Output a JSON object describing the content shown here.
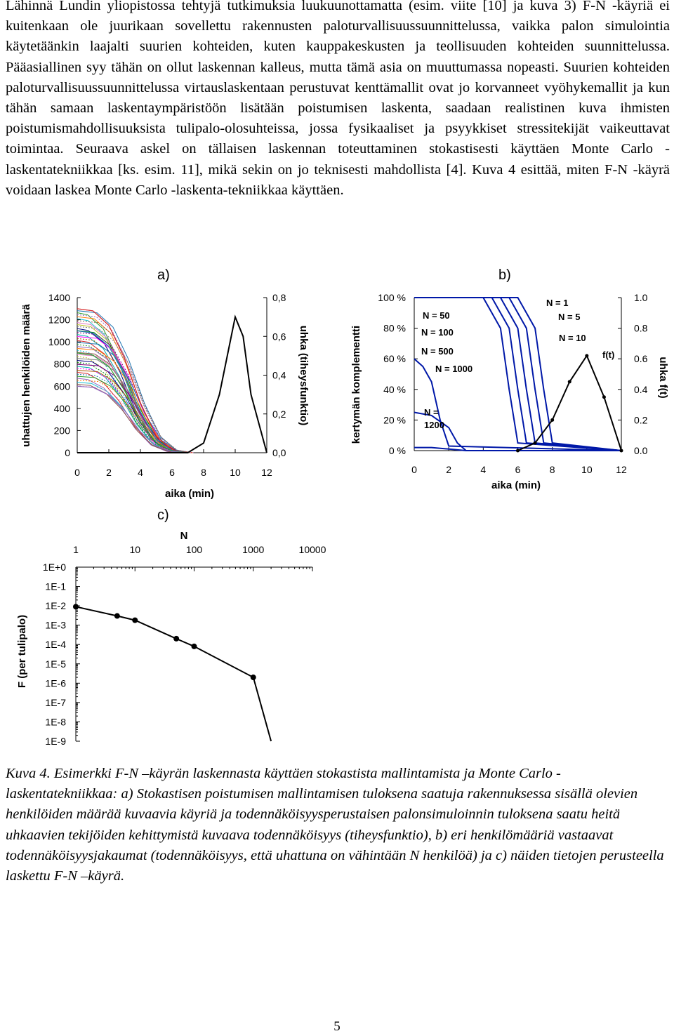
{
  "body_text": "Lähinnä Lundin yliopistossa tehtyjä tutkimuksia luukuunottamatta (esim. viite [10] ja kuva 3) F-N -käyriä ei kuitenkaan ole juurikaan sovellettu rakennusten paloturvallisuussuunnittelussa, vaikka palon simulointia käytetäänkin laajalti suurien kohteiden, kuten kauppakeskusten ja teollisuuden kohteiden suunnittelussa. Pääasiallinen syy tähän on ollut laskennan kalleus, mutta tämä asia on muuttumassa nopeasti. Suurien kohteiden paloturvallisuussuunnittelussa virtauslaskentaan perustuvat kenttämallit ovat jo korvanneet vyöhykemallit ja kun tähän samaan laskentaympäristöön lisätään poistumisen laskenta, saadaan realistinen kuva ihmisten poistumismahdollisuuksista tulipalo-olosuhteissa, jossa fysikaaliset ja psyykkiset stressitekijät vaikeuttavat toimintaa. Seuraava askel on tällaisen laskennan toteuttaminen stokastisesti käyttäen Monte Carlo -laskentatekniikkaa [ks. esim. 11], mikä sekin on jo teknisesti mahdollista [4]. Kuva 4 esittää, miten F-N -käyrä voidaan laskea Monte Carlo -laskenta-tekniikkaa käyttäen.",
  "caption": "Kuva 4. Esimerkki F-N –käyrän laskennasta käyttäen stokastista mallintamista ja Monte Carlo -laskentatekniikkaa: a) Stokastisen poistumisen mallintamisen tuloksena saatuja rakennuksessa sisällä olevien henkilöiden määrää kuvaavia käyriä ja todennäköisyysperustaisen palonsimuloinnin tuloksena saatu heitä uhkaavien tekijöiden kehittymistä kuvaava todennäköisyys (tiheysfunktio), b) eri henkilömääriä vastaavat todennäköisyysjakaumat (todennäköisyys, että uhattuna on vähintään N henkilöä) ja c) näiden tietojen perusteella laskettu F-N –käyrä.",
  "page_number": "5",
  "chart_data": [
    {
      "panel": "a)",
      "type": "line",
      "xlabel": "aika (min)",
      "ylabel": "uhattujen henkilöiden määrä",
      "y2label": "uhka (tiheysfunktio)",
      "xlim": [
        0,
        12
      ],
      "ylim": [
        0,
        1400
      ],
      "y2lim": [
        0,
        0.8
      ],
      "x_ticks": [
        "0",
        "2",
        "4",
        "6",
        "8",
        "10",
        "12"
      ],
      "y_ticks": [
        "0",
        "200",
        "400",
        "600",
        "800",
        "1000",
        "1200",
        "1400"
      ],
      "y2_ticks": [
        "0,0",
        "0,2",
        "0,4",
        "0,6",
        "0,8"
      ],
      "series": [
        {
          "x": [
            0,
            1,
            2,
            3,
            4,
            5,
            6,
            7
          ],
          "values": [
            1300,
            1280,
            1150,
            850,
            450,
            150,
            25,
            0
          ]
        },
        {
          "x": [
            0,
            1,
            2,
            3,
            4,
            5,
            6,
            7
          ],
          "values": [
            1100,
            1080,
            960,
            700,
            370,
            120,
            20,
            0
          ]
        },
        {
          "x": [
            0,
            1,
            2,
            3,
            4,
            5,
            6,
            7
          ],
          "values": [
            900,
            880,
            780,
            560,
            280,
            90,
            15,
            0
          ]
        },
        {
          "x": [
            0,
            1,
            2,
            3,
            4,
            5,
            6,
            7
          ],
          "values": [
            600,
            590,
            520,
            380,
            190,
            60,
            10,
            0
          ]
        },
        {
          "x": [
            0,
            7,
            8,
            9,
            10,
            10.5,
            11,
            12
          ],
          "values": [
            0,
            0,
            0.05,
            0.3,
            0.7,
            0.6,
            0.3,
            0.0
          ],
          "axis": "y2"
        }
      ],
      "grid": false
    },
    {
      "panel": "b)",
      "type": "line",
      "xlabel": "aika (min)",
      "ylabel": "kertymän komplementti",
      "y2label": "uhka f(t)",
      "xlim": [
        0,
        12
      ],
      "ylim": [
        0,
        100
      ],
      "y2lim": [
        0,
        1.0
      ],
      "x_ticks": [
        "0",
        "2",
        "4",
        "6",
        "8",
        "10",
        "12"
      ],
      "y_ticks": [
        "0 %",
        "20 %",
        "40 %",
        "60 %",
        "80 %",
        "100 %"
      ],
      "y2_ticks": [
        "0.0",
        "0.2",
        "0.4",
        "0.6",
        "0.8",
        "1.0"
      ],
      "series": [
        {
          "name": "N = 1",
          "x": [
            0,
            6,
            7,
            7.5,
            8,
            12
          ],
          "values": [
            100,
            100,
            80,
            40,
            5,
            0
          ]
        },
        {
          "name": "N = 5",
          "x": [
            0,
            5.5,
            6.5,
            7,
            7.5,
            12
          ],
          "values": [
            100,
            100,
            80,
            40,
            5,
            0
          ]
        },
        {
          "name": "N = 10",
          "x": [
            0,
            5,
            6,
            6.5,
            7,
            12
          ],
          "values": [
            100,
            100,
            80,
            40,
            5,
            0
          ]
        },
        {
          "name": "N = 50",
          "x": [
            0,
            4.5,
            5.5,
            6,
            6.5,
            12
          ],
          "values": [
            100,
            100,
            80,
            40,
            5,
            0
          ]
        },
        {
          "name": "N = 100",
          "x": [
            0,
            4,
            5,
            5.5,
            6,
            12
          ],
          "values": [
            100,
            100,
            80,
            40,
            5,
            0
          ]
        },
        {
          "name": "N = 500",
          "x": [
            0,
            1,
            2,
            2.5,
            3,
            12
          ],
          "values": [
            25,
            23,
            15,
            5,
            0,
            0
          ]
        },
        {
          "name": "N = 1000",
          "x": [
            0,
            0.5,
            1,
            1.5,
            2,
            12
          ],
          "values": [
            60,
            55,
            45,
            20,
            3,
            0
          ]
        },
        {
          "name": "N = 1200",
          "x": [
            0,
            1,
            2,
            3,
            12
          ],
          "values": [
            2,
            2,
            1,
            0,
            0
          ]
        },
        {
          "name": "f(t)",
          "x": [
            6,
            7,
            8,
            9,
            10,
            11,
            12
          ],
          "values": [
            0,
            0.05,
            0.2,
            0.45,
            0.62,
            0.35,
            0
          ],
          "axis": "y2"
        }
      ],
      "grid": false
    },
    {
      "panel": "c)",
      "type": "line",
      "xlabel": "N",
      "ylabel": "F (per tulipalo)",
      "xscale": "log",
      "yscale": "log",
      "xlim": [
        1,
        10000
      ],
      "ylim": [
        1e-09,
        1
      ],
      "x_ticks": [
        "1",
        "10",
        "100",
        "1000",
        "10000"
      ],
      "y_ticks": [
        "1E+0",
        "1E-1",
        "1E-2",
        "1E-3",
        "1E-4",
        "1E-5",
        "1E-6",
        "1E-7",
        "1E-8",
        "1E-9"
      ],
      "series": [
        {
          "x": [
            1,
            5,
            10,
            50,
            100,
            1000,
            2000
          ],
          "values": [
            0.009,
            0.003,
            0.0018,
            0.0002,
            8e-05,
            2e-06,
            1e-09
          ],
          "markers": [
            true,
            true,
            true,
            true,
            true,
            true,
            false
          ]
        }
      ],
      "grid": false
    }
  ]
}
